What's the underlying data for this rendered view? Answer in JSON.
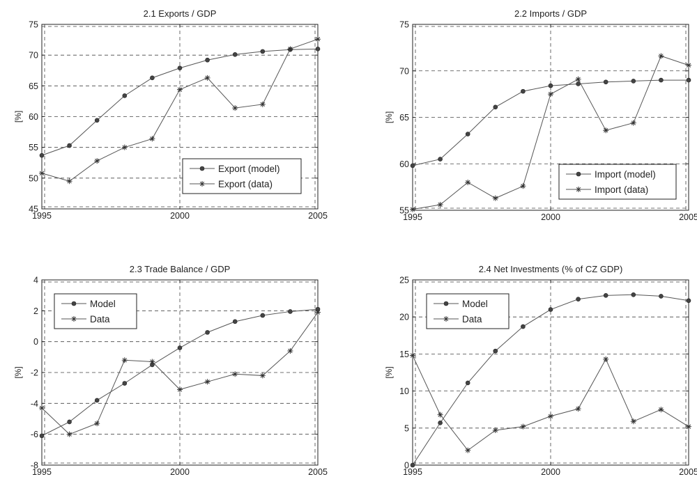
{
  "chart_data": [
    {
      "type": "line",
      "title": "2.1 Exports / GDP",
      "xlabel": "",
      "ylabel": "[%]",
      "xlim": [
        1995,
        2005
      ],
      "ylim": [
        45,
        75
      ],
      "x_ticks": [
        "1995",
        "2000",
        "2005"
      ],
      "y_ticks": [
        "45",
        "50",
        "55",
        "60",
        "65",
        "70",
        "75"
      ],
      "grid": true,
      "legend_position": "bottom-right",
      "x": [
        1995,
        1996,
        1997,
        1998,
        1999,
        2000,
        2001,
        2002,
        2003,
        2004,
        2005
      ],
      "series": [
        {
          "name": "Export (model)",
          "marker": "dot",
          "values": [
            53.7,
            55.3,
            59.4,
            63.4,
            66.3,
            67.9,
            69.2,
            70.1,
            70.6,
            70.9,
            71.0
          ]
        },
        {
          "name": "Export (data)",
          "marker": "star",
          "values": [
            50.8,
            49.5,
            52.8,
            55.0,
            56.4,
            64.4,
            66.3,
            61.4,
            62.0,
            71.0,
            72.6
          ]
        }
      ]
    },
    {
      "type": "line",
      "title": "2.2 Imports / GDP",
      "xlabel": "",
      "ylabel": "[%]",
      "xlim": [
        1995,
        2005
      ],
      "ylim": [
        55,
        75
      ],
      "x_ticks": [
        "1995",
        "2000",
        "2005"
      ],
      "y_ticks": [
        "55",
        "60",
        "65",
        "70",
        "75"
      ],
      "grid": true,
      "legend_position": "bottom-right",
      "x": [
        1995,
        1996,
        1997,
        1998,
        1999,
        2000,
        2001,
        2002,
        2003,
        2004,
        2005
      ],
      "series": [
        {
          "name": "Import (model)",
          "marker": "dot",
          "values": [
            59.8,
            60.5,
            63.2,
            66.1,
            67.8,
            68.4,
            68.6,
            68.8,
            68.9,
            69.0,
            69.0
          ]
        },
        {
          "name": "Import (data)",
          "marker": "star",
          "values": [
            55.1,
            55.6,
            58.0,
            56.3,
            57.6,
            67.5,
            69.1,
            63.6,
            64.4,
            71.6,
            70.6
          ]
        }
      ]
    },
    {
      "type": "line",
      "title": "2.3 Trade Balance / GDP",
      "xlabel": "",
      "ylabel": "[%]",
      "xlim": [
        1995,
        2005
      ],
      "ylim": [
        -8,
        4
      ],
      "x_ticks": [
        "1995",
        "2000",
        "2005"
      ],
      "y_ticks": [
        "-8",
        "-6",
        "-4",
        "-2",
        "0",
        "2",
        "4"
      ],
      "grid": true,
      "legend_position": "top-left",
      "x": [
        1995,
        1996,
        1997,
        1998,
        1999,
        2000,
        2001,
        2002,
        2003,
        2004,
        2005
      ],
      "series": [
        {
          "name": "Model",
          "marker": "dot",
          "values": [
            -6.1,
            -5.2,
            -3.8,
            -2.7,
            -1.5,
            -0.4,
            0.6,
            1.3,
            1.7,
            1.95,
            2.1
          ]
        },
        {
          "name": "Data",
          "marker": "star",
          "values": [
            -4.3,
            -6.0,
            -5.3,
            -1.2,
            -1.3,
            -3.1,
            -2.6,
            -2.1,
            -2.2,
            -0.6,
            1.9
          ]
        }
      ]
    },
    {
      "type": "line",
      "title": "2.4 Net Investments (% of CZ GDP)",
      "xlabel": "",
      "ylabel": "[%]",
      "xlim": [
        1995,
        2005
      ],
      "ylim": [
        0,
        25
      ],
      "x_ticks": [
        "1995",
        "2000",
        "2005"
      ],
      "y_ticks": [
        "0",
        "5",
        "10",
        "15",
        "20",
        "25"
      ],
      "grid": true,
      "legend_position": "top-left",
      "x": [
        1995,
        1996,
        1997,
        1998,
        1999,
        2000,
        2001,
        2002,
        2003,
        2004,
        2005
      ],
      "series": [
        {
          "name": "Model",
          "marker": "dot",
          "values": [
            0.0,
            5.7,
            11.1,
            15.4,
            18.7,
            21.0,
            22.4,
            22.9,
            23.0,
            22.8,
            22.2
          ]
        },
        {
          "name": "Data",
          "marker": "star",
          "values": [
            14.8,
            6.8,
            2.0,
            4.7,
            5.2,
            6.6,
            7.6,
            14.3,
            5.9,
            7.5,
            5.2
          ]
        }
      ]
    }
  ]
}
